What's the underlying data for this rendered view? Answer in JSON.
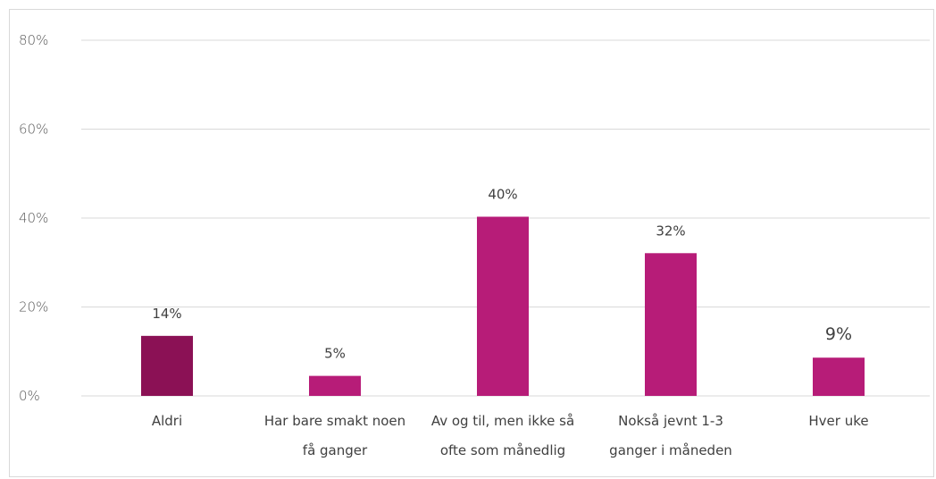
{
  "chart_data": {
    "type": "bar",
    "title": "",
    "xlabel": "",
    "ylabel": "",
    "ylim": [
      0,
      80
    ],
    "yticks": [
      "0%",
      "20%",
      "40%",
      "60%",
      "80%"
    ],
    "grid": true,
    "legend": "none",
    "categories": [
      [
        "Aldri"
      ],
      [
        "Har bare smakt noen",
        "få ganger"
      ],
      [
        "Av og til, men ikke så",
        "ofte som månedlig"
      ],
      [
        "Nokså jevnt 1-3",
        "ganger i måneden"
      ],
      [
        "Hver uke"
      ]
    ],
    "values": [
      13.5,
      4.5,
      40.3,
      32.1,
      8.6
    ],
    "data_labels": [
      "14%",
      "5%",
      "40%",
      "32%",
      "9%"
    ],
    "colors": [
      "#8b1155",
      "#b71c78",
      "#b71c78",
      "#b71c78",
      "#b71c78"
    ]
  }
}
